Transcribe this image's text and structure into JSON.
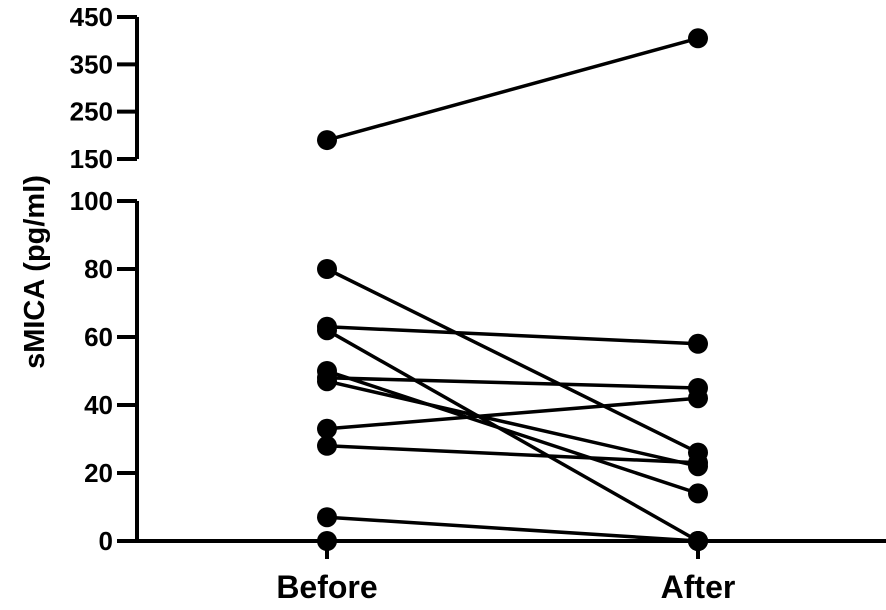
{
  "chart_data": {
    "type": "line",
    "title": "",
    "xlabel": "",
    "ylabel": "sMICA (pg/ml)",
    "categories": [
      "Before",
      "After"
    ],
    "axis_break": {
      "lower_range": [
        0,
        100
      ],
      "upper_range": [
        150,
        450
      ]
    },
    "ylim": [
      0,
      450
    ],
    "yticks_lower": [
      "0",
      "20",
      "40",
      "60",
      "80",
      "100"
    ],
    "yticks_upper": [
      "150",
      "250",
      "350",
      "450"
    ],
    "grid": false,
    "legend": "none",
    "colors": {
      "line": "#000000",
      "marker": "#000000",
      "axis": "#000000"
    },
    "series": [
      {
        "values": [
          190,
          405
        ]
      },
      {
        "values": [
          80,
          26
        ]
      },
      {
        "values": [
          63,
          58
        ]
      },
      {
        "values": [
          62,
          0
        ]
      },
      {
        "values": [
          50,
          14
        ]
      },
      {
        "values": [
          48,
          45
        ]
      },
      {
        "values": [
          47,
          22
        ]
      },
      {
        "values": [
          33,
          42
        ]
      },
      {
        "values": [
          28,
          23
        ]
      },
      {
        "values": [
          7,
          0
        ]
      },
      {
        "values": [
          0,
          0
        ]
      }
    ]
  }
}
